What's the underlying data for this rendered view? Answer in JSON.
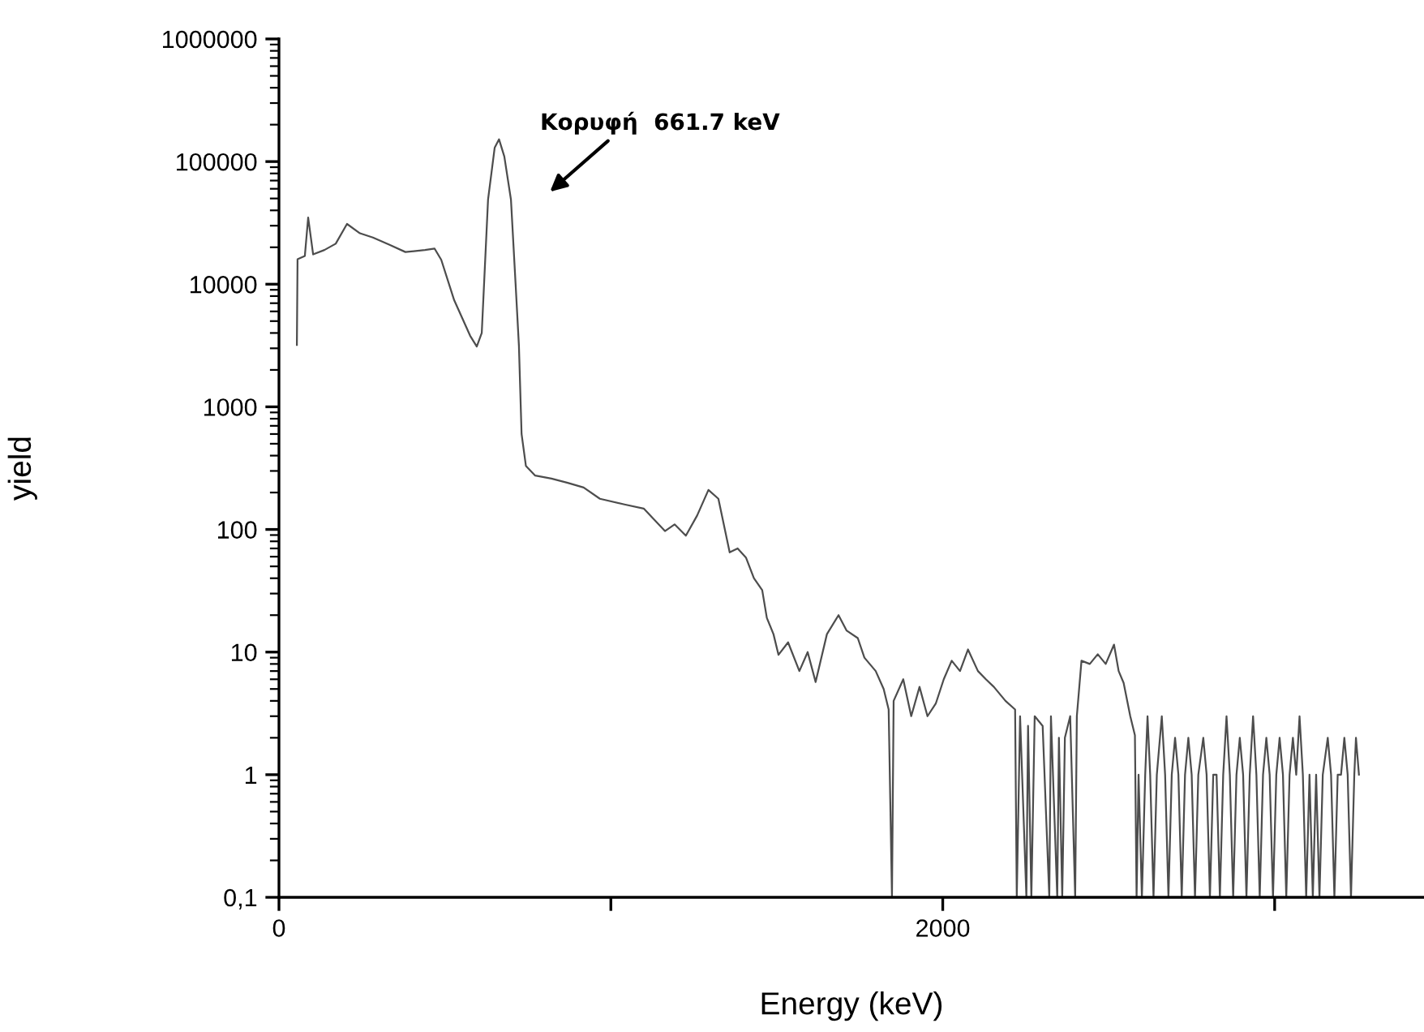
{
  "chart_data": {
    "type": "line",
    "xlabel": "Energy (keV)",
    "ylabel": "yield",
    "log": "y",
    "grid": false,
    "marker": "none",
    "line_style": "solid",
    "xlim": [
      0,
      3450
    ],
    "xticks": [
      0,
      {
        "value": 1000,
        "label": null
      },
      2000,
      {
        "value": 3000,
        "label": null
      }
    ],
    "ylim": [
      0.1,
      1000000
    ],
    "yticks": [
      1000000,
      100000,
      10000,
      1000,
      100,
      10,
      1,
      {
        "value": 0.1,
        "label": "0,1"
      }
    ],
    "annotations": [
      "Κορυφή  661.7 keV"
    ],
    "series": [
      {
        "color": "#4d4d4d",
        "x": [
          54,
          56,
          78,
          88,
          103,
          137,
          171,
          205,
          244,
          283,
          332,
          381,
          440,
          469,
          489,
          528,
          576,
          596,
          611,
          630,
          650,
          663,
          679,
          699,
          713,
          723,
          731,
          744,
          772,
          821,
          870,
          918,
          967,
          1041,
          1099,
          1163,
          1192,
          1226,
          1260,
          1294,
          1324,
          1358,
          1382,
          1407,
          1431,
          1456,
          1470,
          1490,
          1505,
          1534,
          1568,
          1593,
          1617,
          1651,
          1686,
          1710,
          1744,
          1764,
          1798,
          1822,
          1837,
          1847,
          1852,
          1881,
          1905,
          1930,
          1954,
          1979,
          2003,
          2027,
          2052,
          2076,
          2106,
          2130,
          2154,
          2189,
          2218,
          2223,
          2233,
          2252,
          2257,
          2267,
          2277,
          2301,
          2321,
          2326,
          2345,
          2350,
          2360,
          2368,
          2384,
          2399,
          2404,
          2418,
          2443,
          2467,
          2491,
          2516,
          2530,
          2545,
          2565,
          2579,
          2584,
          2590,
          2600,
          2610,
          2617,
          2625,
          2635,
          2645,
          2660,
          2670,
          2680,
          2690,
          2700,
          2710,
          2720,
          2730,
          2740,
          2750,
          2760,
          2770,
          2785,
          2795,
          2805,
          2815,
          2825,
          2835,
          2845,
          2855,
          2865,
          2875,
          2885,
          2895,
          2905,
          2915,
          2925,
          2935,
          2945,
          2955,
          2965,
          2975,
          2985,
          2995,
          3005,
          3015,
          3025,
          3035,
          3045,
          3055,
          3065,
          3075,
          3085,
          3095,
          3105,
          3115,
          3125,
          3135,
          3145,
          3160,
          3170,
          3180,
          3190,
          3200,
          3210,
          3220,
          3230,
          3240,
          3245,
          3254
        ],
        "values": [
          3200,
          16000,
          17000,
          35000,
          17500,
          19000,
          21400,
          31000,
          26000,
          24000,
          21000,
          18300,
          19000,
          19500,
          15800,
          7400,
          3800,
          3100,
          4000,
          49000,
          130000,
          152000,
          110000,
          49000,
          10000,
          3150,
          600,
          330,
          275,
          260,
          240,
          220,
          178,
          160,
          148,
          97,
          110,
          89,
          130,
          210,
          178,
          65,
          70,
          59,
          40,
          32,
          19,
          14,
          9.5,
          12,
          7,
          10,
          5.7,
          14,
          20,
          15,
          13,
          9,
          7,
          5,
          3.4,
          0.1,
          4,
          6,
          3,
          5.2,
          3,
          3.8,
          6,
          8.5,
          7,
          10.5,
          7,
          6,
          5.2,
          4,
          3.4,
          0.1,
          3,
          0.1,
          2.5,
          0.1,
          3,
          2.5,
          0.1,
          3,
          0.1,
          2,
          0.1,
          2,
          3,
          0.1,
          3,
          8.5,
          8,
          9.6,
          8,
          11.5,
          7,
          5.6,
          3,
          2.1,
          0.1,
          1,
          0.1,
          1,
          3,
          1,
          0.1,
          1,
          3,
          1,
          0.1,
          1,
          2,
          1,
          0.1,
          1,
          2,
          1,
          0.1,
          1,
          2,
          1,
          0.1,
          1,
          1,
          0.1,
          1,
          3,
          1,
          0.1,
          1,
          2,
          1,
          0.1,
          1,
          3,
          1,
          0.1,
          1,
          2,
          1,
          0.1,
          1,
          2,
          1,
          0.1,
          1,
          2,
          1,
          3,
          1,
          0.1,
          1,
          0.1,
          1,
          0.1,
          1,
          2,
          1,
          0.1,
          1,
          1,
          2,
          1,
          0.1,
          1,
          2,
          1
        ]
      }
    ]
  }
}
